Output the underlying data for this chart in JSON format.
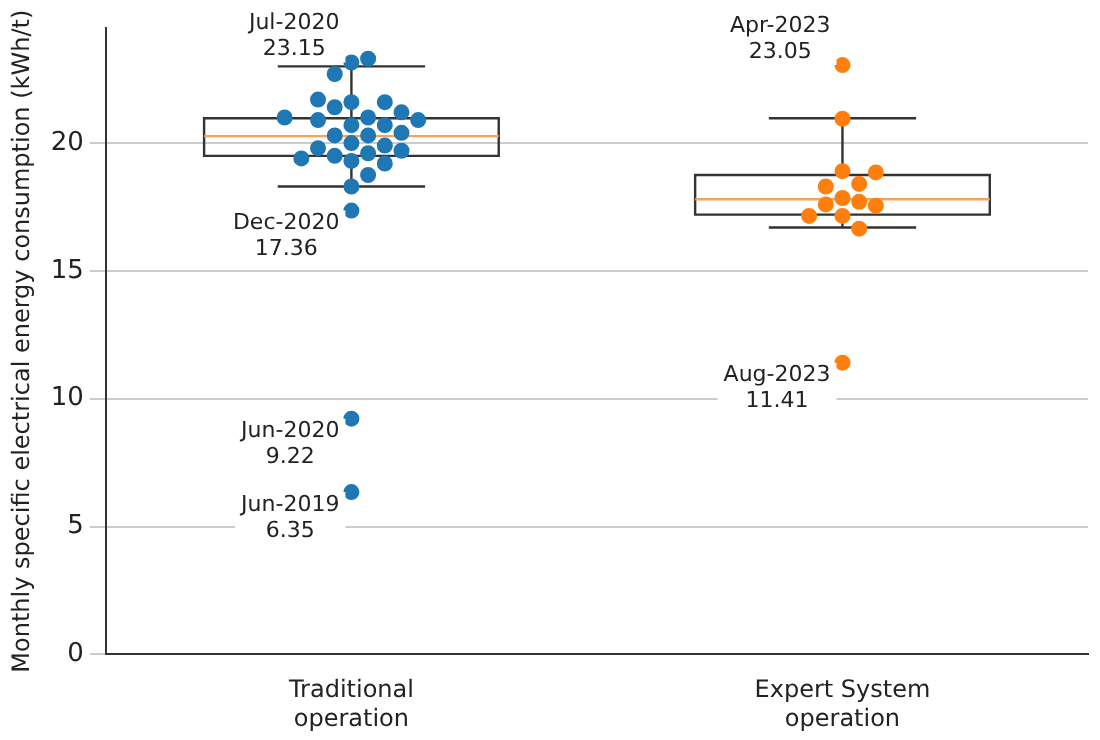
{
  "chart_data": {
    "type": "box",
    "ylabel": "Monthly specific electrical energy consumption (kWh/t)",
    "categories": [
      "Traditional\noperation",
      "Expert System\noperation"
    ],
    "ylim": [
      0,
      24.5
    ],
    "yticks": [
      0,
      5,
      10,
      15,
      20
    ],
    "grid": "y",
    "legend": false,
    "marker": "circle",
    "boxes": [
      {
        "low": 18.3,
        "q1": 19.5,
        "median": 20.27,
        "q3": 20.97,
        "high": 23.0
      },
      {
        "low": 16.7,
        "q1": 17.2,
        "median": 17.8,
        "q3": 18.75,
        "high": 20.97
      }
    ],
    "series": [
      {
        "type": "scatter",
        "color": "#1f77b4",
        "x": [
          "Traditional\noperation",
          "Traditional\noperation",
          "Traditional\noperation",
          "Traditional\noperation",
          "Traditional\noperation",
          "Traditional\noperation",
          "Traditional\noperation",
          "Traditional\noperation",
          "Traditional\noperation",
          "Traditional\noperation",
          "Traditional\noperation",
          "Traditional\noperation",
          "Traditional\noperation",
          "Traditional\noperation",
          "Traditional\noperation",
          "Traditional\noperation",
          "Traditional\noperation",
          "Traditional\noperation",
          "Traditional\noperation",
          "Traditional\noperation",
          "Traditional\noperation",
          "Traditional\noperation",
          "Traditional\noperation",
          "Traditional\noperation",
          "Traditional\noperation",
          "Traditional\noperation",
          "Traditional\noperation",
          "Traditional\noperation",
          "Traditional\noperation",
          "Traditional\noperation",
          "Traditional\noperation"
        ],
        "values": [
          23.15,
          23.3,
          22.7,
          21.6,
          21.6,
          21.7,
          21.0,
          21.4,
          21.2,
          20.9,
          20.7,
          20.7,
          20.9,
          21.0,
          20.3,
          20.3,
          20.4,
          20.0,
          19.9,
          19.8,
          19.7,
          19.6,
          19.3,
          19.2,
          19.4,
          19.5,
          18.75,
          18.3,
          17.36,
          9.22,
          6.35
        ]
      },
      {
        "type": "scatter",
        "color": "#ff7f0e",
        "x": [
          "Expert System\noperation",
          "Expert System\noperation",
          "Expert System\noperation",
          "Expert System\noperation",
          "Expert System\noperation",
          "Expert System\noperation",
          "Expert System\noperation",
          "Expert System\noperation",
          "Expert System\noperation",
          "Expert System\noperation",
          "Expert System\noperation",
          "Expert System\noperation",
          "Expert System\noperation",
          "Expert System\noperation"
        ],
        "values": [
          23.05,
          20.95,
          18.9,
          18.85,
          18.4,
          18.3,
          17.85,
          17.7,
          17.6,
          17.55,
          17.15,
          17.15,
          16.65,
          11.41
        ]
      }
    ],
    "annotations": [
      {
        "text": "Jul-2020\n23.15",
        "x": "Traditional\noperation",
        "y": 23.15
      },
      {
        "text": "Dec-2020\n17.36",
        "x": "Traditional\noperation",
        "y": 17.36
      },
      {
        "text": "Jun-2020\n9.22",
        "x": "Traditional\noperation",
        "y": 9.22
      },
      {
        "text": "Jun-2019\n6.35",
        "x": "Traditional\noperation",
        "y": 6.35
      },
      {
        "text": "Apr-2023\n23.05",
        "x": "Expert System\noperation",
        "y": 23.05
      },
      {
        "text": "Aug-2023\n11.41",
        "x": "Expert System\noperation",
        "y": 11.41
      }
    ]
  }
}
